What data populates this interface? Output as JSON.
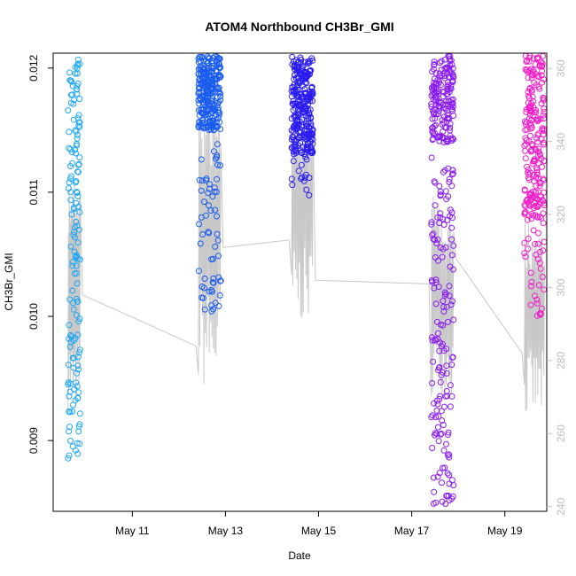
{
  "chart_data": {
    "type": "scatter",
    "title": "ATOM4 Northbound CH3Br_GMI",
    "xlabel": "Date",
    "ylabel": "CH3Br_GMI",
    "x_ticks": [
      "May 11",
      "May 13",
      "May 15",
      "May 17",
      "May 19"
    ],
    "x_range_days": [
      9.3,
      19.9
    ],
    "y_ticks": [
      "0.009",
      "0.010",
      "0.011",
      "0.012"
    ],
    "ylim": [
      0.00843,
      0.01212
    ],
    "y2_ticks": [
      "240",
      "260",
      "280",
      "300",
      "320",
      "340",
      "360"
    ],
    "y2lim": [
      238.7,
      364.2
    ],
    "y2_color": "#bdbdbd",
    "grid": false,
    "legend": "none",
    "series": [
      {
        "color": "#1ea8f5",
        "day_range": [
          9.62,
          9.88
        ],
        "points": 150,
        "values_range": [
          0.00877,
          0.0121
        ],
        "secondary_values_range": [
          265,
          330
        ]
      },
      {
        "color": "#1a5cf0",
        "day_range": [
          12.42,
          12.9
        ],
        "points": 320,
        "values_range": [
          0.01,
          0.0121
        ],
        "secondary_values_range": [
          272,
          352
        ]
      },
      {
        "color": "#2a1cf0",
        "day_range": [
          14.42,
          14.88
        ],
        "points": 280,
        "values_range": [
          0.01095,
          0.0121
        ],
        "secondary_values_range": [
          290,
          350
        ]
      },
      {
        "color": "#8a1cf0",
        "day_range": [
          17.42,
          17.9
        ],
        "points": 320,
        "values_range": [
          0.00848,
          0.0121
        ],
        "secondary_values_range": [
          270,
          325
        ]
      },
      {
        "color": "#f01cc8",
        "day_range": [
          19.42,
          19.85
        ],
        "points": 240,
        "values_range": [
          0.01,
          0.0121
        ],
        "secondary_values_range": [
          264,
          318
        ]
      }
    ]
  }
}
